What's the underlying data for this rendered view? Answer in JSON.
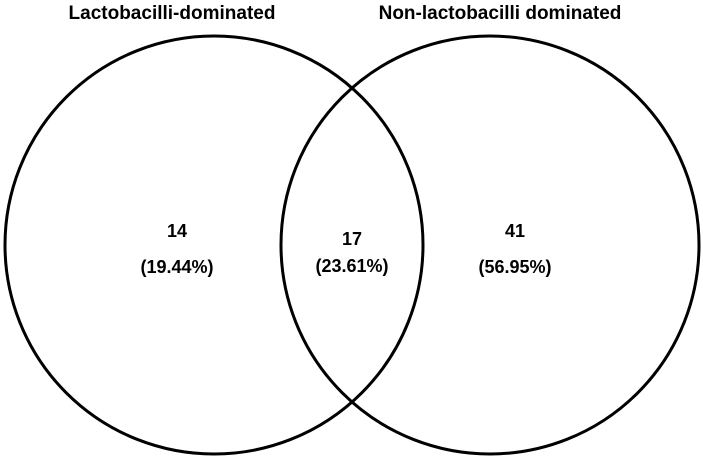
{
  "sets": [
    {
      "label": "Lactobacilli-dominated"
    },
    {
      "label": "Non-lactobacilli dominated"
    }
  ],
  "regions": {
    "left_only": {
      "count": "14",
      "percent": "(19.44%)"
    },
    "intersection": {
      "count": "17",
      "percent": "(23.61%)"
    },
    "right_only": {
      "count": "41",
      "percent": "(56.95%)"
    }
  },
  "colors": {
    "stroke": "#000000",
    "background": "#ffffff"
  }
}
